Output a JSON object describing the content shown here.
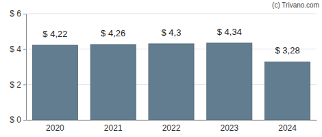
{
  "chart_data": {
    "type": "bar",
    "categories": [
      "2020",
      "2021",
      "2022",
      "2023",
      "2024"
    ],
    "values": [
      4.22,
      4.26,
      4.3,
      4.34,
      3.28
    ],
    "value_labels": [
      "$ 4,22",
      "$ 4,26",
      "$ 4,3",
      "$ 4,34",
      "$ 3,28"
    ],
    "color": "#627d8f",
    "ylim": [
      0,
      6
    ],
    "yticks": [
      {
        "value": 0,
        "label": "$ 0"
      },
      {
        "value": 2,
        "label": "$ 2"
      },
      {
        "value": 4,
        "label": "$ 4"
      },
      {
        "value": 6,
        "label": "$ 6"
      }
    ],
    "grid": true,
    "data_labels": true,
    "annotations": [
      "(c) Trivano.com"
    ]
  }
}
